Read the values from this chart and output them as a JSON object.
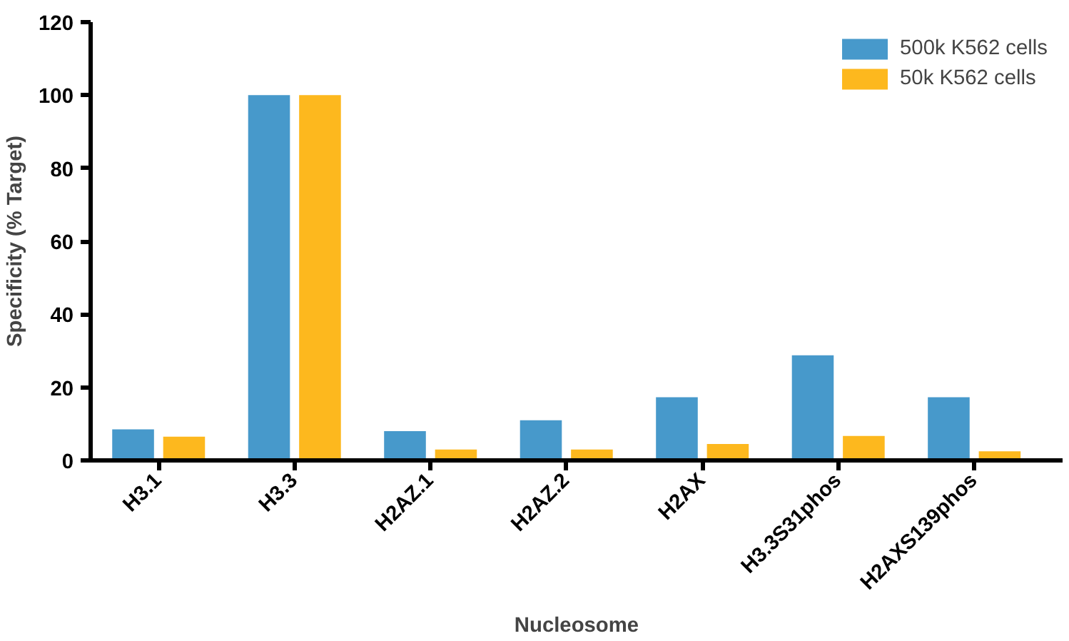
{
  "chart_data": {
    "type": "bar",
    "xlabel": "Nucleosome",
    "ylabel": "Specificity (% Target)",
    "categories": [
      "H3.1",
      "H3.3",
      "H2AZ.1",
      "H2AZ.2",
      "H2AX",
      "H3.3S31phos",
      "H2AXS139phos"
    ],
    "series": [
      {
        "name": "500k K562 cells",
        "color": "#4799cb",
        "values": [
          8.5,
          100,
          8,
          11,
          17.3,
          28.8,
          17.3
        ]
      },
      {
        "name": "50k K562 cells",
        "color": "#fdb81e",
        "values": [
          6.5,
          100,
          3,
          3,
          4.5,
          6.7,
          2.5
        ]
      }
    ],
    "ylim": [
      0,
      120
    ],
    "yticks": [
      0,
      20,
      40,
      60,
      80,
      100,
      120
    ],
    "grid": false,
    "legend": "top right"
  }
}
